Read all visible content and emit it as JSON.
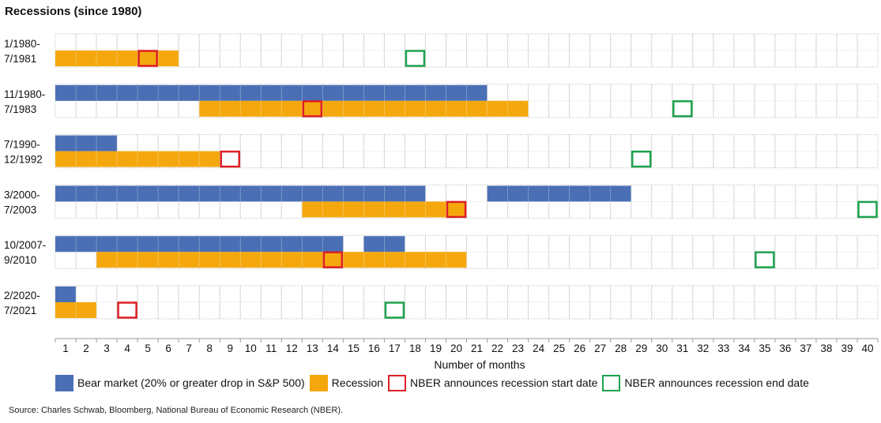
{
  "chart_data": {
    "type": "timeline",
    "title": "Recessions (since 1980)",
    "xlabel": "Number of months",
    "x_ticks": [
      1,
      2,
      3,
      4,
      5,
      6,
      7,
      8,
      9,
      10,
      11,
      12,
      13,
      14,
      15,
      16,
      17,
      18,
      19,
      20,
      21,
      22,
      23,
      24,
      25,
      26,
      27,
      28,
      29,
      30,
      31,
      32,
      33,
      34,
      35,
      36,
      37,
      38,
      39,
      40
    ],
    "grid": true,
    "legend": [
      {
        "key": "bear",
        "label": "Bear market (20% or greater drop in S&P 500)"
      },
      {
        "key": "recession",
        "label": "Recession"
      },
      {
        "key": "start",
        "label": "NBER announces recession start date"
      },
      {
        "key": "end",
        "label": "NBER announces recession end date"
      }
    ],
    "colors": {
      "bear": "#4a6fb5",
      "recession": "#f5a80d",
      "start": "#dd1f26",
      "end": "#1da24e",
      "grid": "#c8c8c8"
    },
    "periods": [
      {
        "label_top": "1/1980-",
        "label_bottom": "7/1981",
        "bear": [],
        "recession": [
          [
            1,
            6
          ]
        ],
        "nber_start": 5,
        "nber_end": 18
      },
      {
        "label_top": "11/1980-",
        "label_bottom": "7/1983",
        "bear": [
          [
            1,
            21
          ]
        ],
        "recession": [
          [
            8,
            23
          ]
        ],
        "nber_start": 13,
        "nber_end": 31
      },
      {
        "label_top": "7/1990-",
        "label_bottom": "12/1992",
        "bear": [
          [
            1,
            3
          ]
        ],
        "recession": [
          [
            1,
            8
          ]
        ],
        "nber_start": 9,
        "nber_end": 29
      },
      {
        "label_top": "3/2000-",
        "label_bottom": "7/2003",
        "bear": [
          [
            1,
            18
          ],
          [
            22,
            28
          ]
        ],
        "recession": [
          [
            13,
            20
          ]
        ],
        "nber_start": 20,
        "nber_end": 40
      },
      {
        "label_top": "10/2007-",
        "label_bottom": "9/2010",
        "bear": [
          [
            1,
            14
          ],
          [
            16,
            17
          ]
        ],
        "recession": [
          [
            3,
            20
          ]
        ],
        "nber_start": 14,
        "nber_end": 35
      },
      {
        "label_top": "2/2020-",
        "label_bottom": "7/2021",
        "bear": [
          [
            1,
            1
          ]
        ],
        "recession": [
          [
            1,
            2
          ]
        ],
        "nber_start": 4,
        "nber_end": 17
      }
    ]
  },
  "source": "Source: Charles Schwab, Bloomberg, National Bureau of Economic Research (NBER)."
}
